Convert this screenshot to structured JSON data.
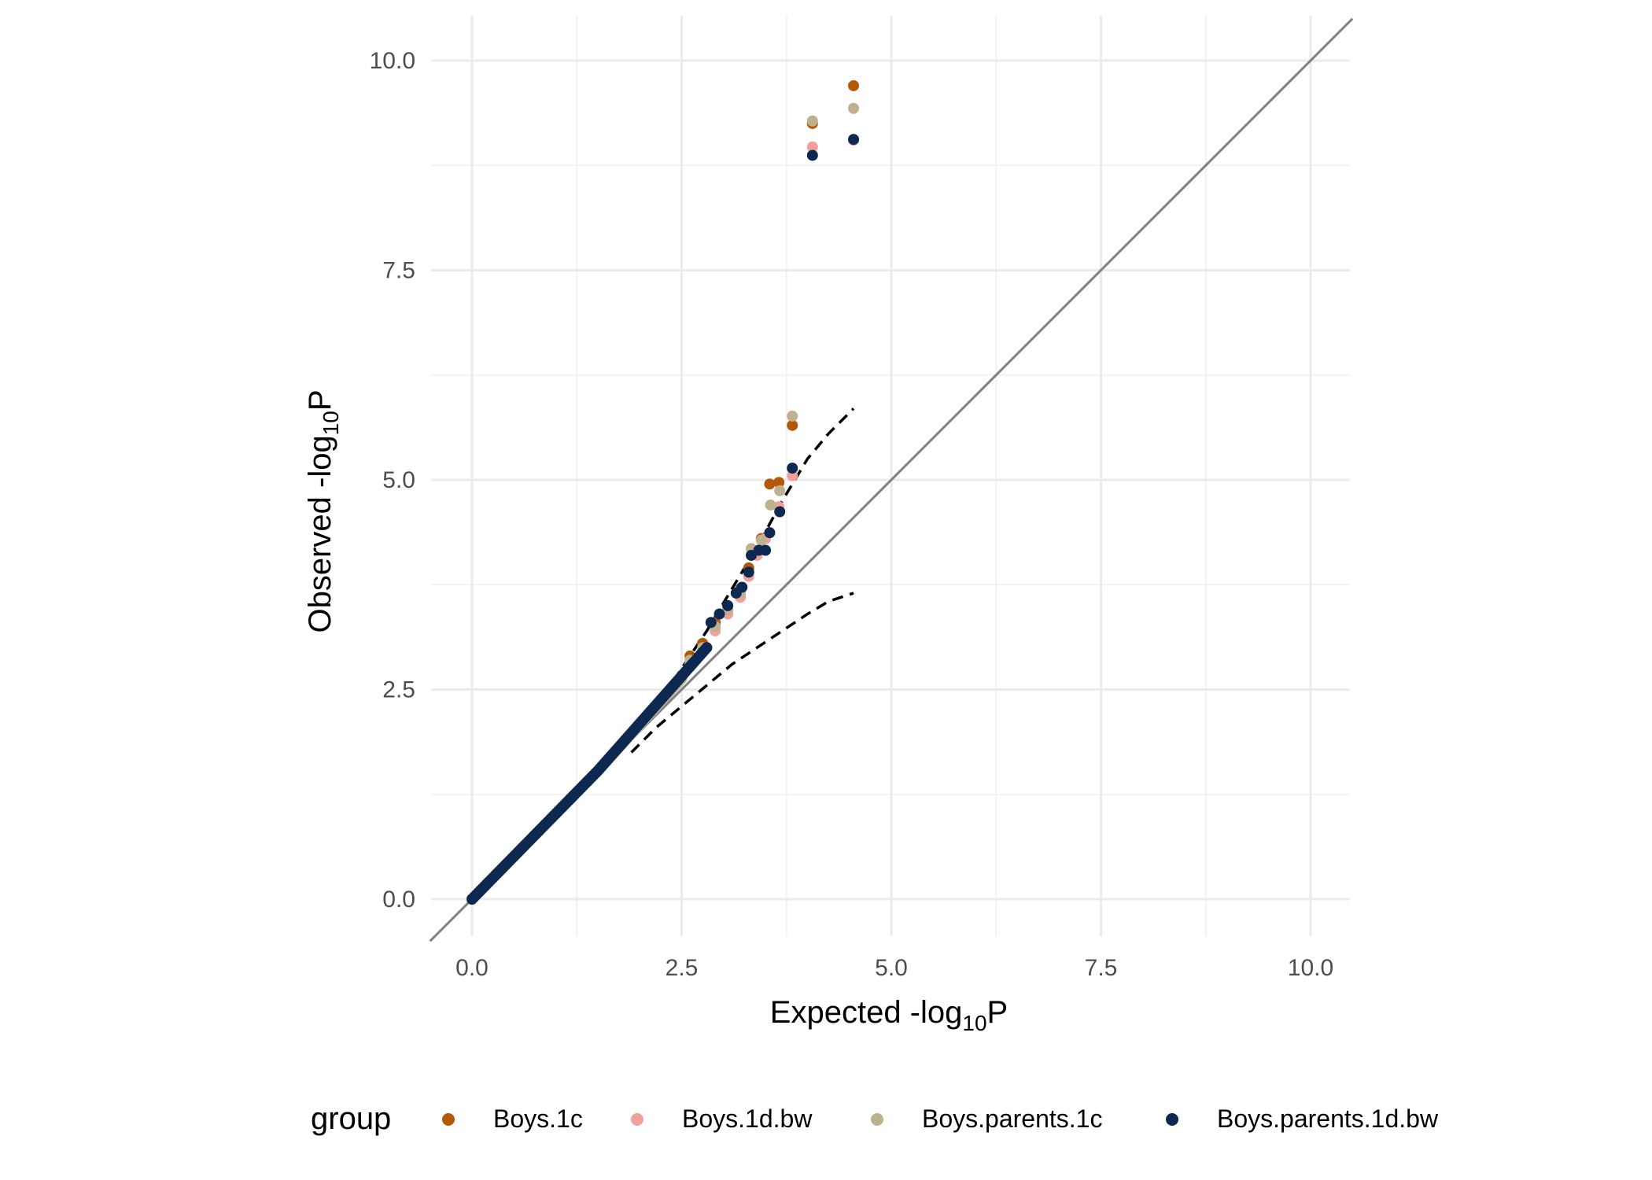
{
  "chart_data": {
    "type": "scatter",
    "title": "",
    "xlabel": {
      "text": "Expected -log",
      "sub": "10",
      "suffix": "P"
    },
    "ylabel": {
      "text": "Observed -log",
      "sub": "10",
      "suffix": "P"
    },
    "xlim": [
      -0.5,
      10.5
    ],
    "ylim": [
      -0.5,
      10.6
    ],
    "x_ticks": [
      0.0,
      2.5,
      5.0,
      7.5,
      10.0
    ],
    "y_ticks": [
      0.0,
      2.5,
      5.0,
      7.5,
      10.0
    ],
    "x_tick_labels": [
      "0.0",
      "2.5",
      "5.0",
      "7.5",
      "10.0"
    ],
    "y_tick_labels": [
      "0.0",
      "2.5",
      "5.0",
      "7.5",
      "10.0"
    ],
    "grid": true,
    "legend": {
      "title": "group",
      "position": "bottom",
      "entries": [
        "Boys.1c",
        "Boys.1d.bw",
        "Boys.parents.1c",
        "Boys.parents.1d.bw"
      ]
    },
    "reference_line": {
      "slope": 1,
      "intercept": 0,
      "color": "#808080"
    },
    "confidence_band": {
      "color": "#000000",
      "x": [
        1.9,
        2.2,
        2.5,
        2.8,
        3.1,
        3.4,
        3.7,
        4.0,
        4.25,
        4.55
      ],
      "upper": [
        1.9,
        2.3,
        2.75,
        3.2,
        3.7,
        4.2,
        4.75,
        5.25,
        5.55,
        5.85
      ],
      "lower": [
        1.75,
        2.05,
        2.3,
        2.55,
        2.8,
        3.0,
        3.2,
        3.4,
        3.55,
        3.65
      ]
    },
    "series": [
      {
        "name": "Boys.1c",
        "color": "#B35806",
        "bulk_start": 0.0,
        "bulk_end": 2.5,
        "bulk_slope": 1.12,
        "points": [
          [
            2.6,
            2.9
          ],
          [
            2.75,
            3.05
          ],
          [
            2.9,
            3.3
          ],
          [
            3.05,
            3.5
          ],
          [
            3.2,
            3.7
          ],
          [
            3.3,
            3.95
          ],
          [
            3.4,
            4.15
          ],
          [
            3.45,
            4.3
          ],
          [
            3.55,
            4.95
          ],
          [
            3.66,
            4.97
          ],
          [
            3.82,
            5.65
          ],
          [
            4.06,
            9.25
          ],
          [
            4.55,
            9.7
          ]
        ]
      },
      {
        "name": "Boys.1d.bw",
        "color": "#F1A09A",
        "bulk_start": 0.0,
        "bulk_end": 2.5,
        "bulk_slope": 1.11,
        "points": [
          [
            2.6,
            2.8
          ],
          [
            2.75,
            2.98
          ],
          [
            2.9,
            3.2
          ],
          [
            3.05,
            3.4
          ],
          [
            3.2,
            3.6
          ],
          [
            3.3,
            3.85
          ],
          [
            3.4,
            4.1
          ],
          [
            3.5,
            4.3
          ],
          [
            3.66,
            4.68
          ],
          [
            3.82,
            5.05
          ],
          [
            4.06,
            8.97
          ],
          [
            4.55,
            9.05
          ]
        ]
      },
      {
        "name": "Boys.parents.1c",
        "color": "#BFB08F",
        "bulk_start": 0.0,
        "bulk_end": 2.5,
        "bulk_slope": 1.1,
        "points": [
          [
            2.6,
            2.85
          ],
          [
            2.75,
            3.0
          ],
          [
            2.9,
            3.25
          ],
          [
            3.05,
            3.45
          ],
          [
            3.2,
            3.65
          ],
          [
            3.33,
            4.18
          ],
          [
            3.45,
            4.28
          ],
          [
            3.56,
            4.7
          ],
          [
            3.67,
            4.87
          ],
          [
            3.82,
            5.76
          ],
          [
            4.06,
            9.28
          ],
          [
            4.55,
            9.43
          ]
        ]
      },
      {
        "name": "Boys.parents.1d.bw",
        "color": "#0D2851",
        "bulk_start": 0.0,
        "bulk_end": 2.8,
        "bulk_slope": 1.13,
        "points": [
          [
            2.85,
            3.3
          ],
          [
            2.95,
            3.4
          ],
          [
            3.05,
            3.5
          ],
          [
            3.15,
            3.65
          ],
          [
            3.22,
            3.72
          ],
          [
            3.3,
            3.9
          ],
          [
            3.33,
            4.1
          ],
          [
            3.42,
            4.16
          ],
          [
            3.5,
            4.16
          ],
          [
            3.55,
            4.37
          ],
          [
            3.67,
            4.62
          ],
          [
            3.82,
            5.14
          ],
          [
            4.06,
            8.87
          ],
          [
            4.55,
            9.06
          ]
        ]
      }
    ]
  }
}
